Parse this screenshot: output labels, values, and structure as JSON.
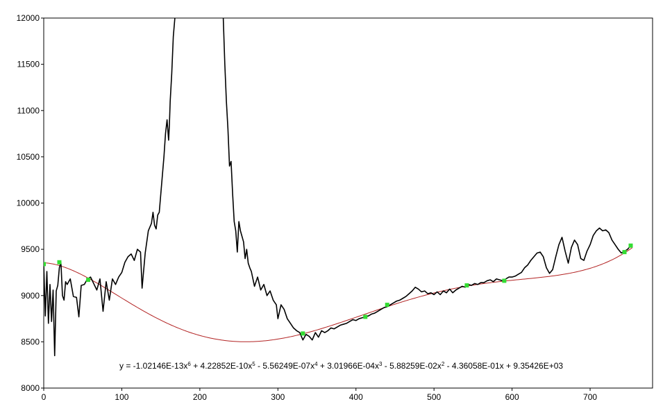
{
  "chart_data": {
    "type": "line",
    "title": "",
    "xlabel": "",
    "ylabel": "",
    "xlim": [
      0,
      780
    ],
    "ylim": [
      8000,
      12000
    ],
    "grid": false,
    "legend": "none",
    "x_ticks": [
      0,
      100,
      200,
      300,
      400,
      500,
      600,
      700
    ],
    "y_ticks": [
      8000,
      8500,
      9000,
      9500,
      10000,
      10500,
      11000,
      11500,
      12000
    ],
    "equation": {
      "y": "y = -1.02146E-13x",
      "p6": "6",
      "t5": " + 4.22852E-10x",
      "p5": "5",
      "t4": " - 5.56249E-07x",
      "p4": "4",
      "t3": " + 3.01966E-04x",
      "p3": "3",
      "t2": " - 5.88259E-02x",
      "p2": "2",
      "t1": " - 4.36058E-01x + 9.35426E+03"
    },
    "series": [
      {
        "kind": "signal",
        "color": "#000000",
        "points": [
          [
            0,
            9340
          ],
          [
            2,
            8780
          ],
          [
            4,
            9260
          ],
          [
            6,
            8700
          ],
          [
            8,
            9120
          ],
          [
            10,
            8720
          ],
          [
            12,
            9060
          ],
          [
            14,
            8350
          ],
          [
            16,
            9050
          ],
          [
            18,
            9110
          ],
          [
            20,
            9300
          ],
          [
            22,
            9360
          ],
          [
            24,
            9000
          ],
          [
            26,
            8950
          ],
          [
            28,
            9150
          ],
          [
            30,
            9120
          ],
          [
            34,
            9180
          ],
          [
            38,
            8990
          ],
          [
            42,
            8980
          ],
          [
            45,
            8770
          ],
          [
            48,
            9110
          ],
          [
            52,
            9120
          ],
          [
            56,
            9180
          ],
          [
            60,
            9200
          ],
          [
            64,
            9130
          ],
          [
            68,
            9060
          ],
          [
            72,
            9180
          ],
          [
            76,
            8830
          ],
          [
            80,
            9150
          ],
          [
            84,
            8950
          ],
          [
            88,
            9180
          ],
          [
            92,
            9120
          ],
          [
            96,
            9200
          ],
          [
            100,
            9250
          ],
          [
            104,
            9360
          ],
          [
            108,
            9420
          ],
          [
            112,
            9450
          ],
          [
            116,
            9380
          ],
          [
            120,
            9500
          ],
          [
            124,
            9470
          ],
          [
            126,
            9080
          ],
          [
            130,
            9460
          ],
          [
            134,
            9700
          ],
          [
            138,
            9780
          ],
          [
            140,
            9900
          ],
          [
            142,
            9760
          ],
          [
            144,
            9720
          ],
          [
            146,
            9870
          ],
          [
            148,
            9900
          ],
          [
            150,
            10100
          ],
          [
            152,
            10300
          ],
          [
            154,
            10500
          ],
          [
            156,
            10750
          ],
          [
            158,
            10900
          ],
          [
            160,
            10680
          ],
          [
            161,
            10850
          ],
          [
            162,
            11100
          ],
          [
            164,
            11400
          ],
          [
            166,
            11800
          ],
          [
            168,
            12000
          ],
          [
            168,
            12100
          ],
          [
            230,
            12100
          ],
          [
            230,
            12000
          ],
          [
            232,
            11500
          ],
          [
            234,
            11100
          ],
          [
            236,
            10800
          ],
          [
            238,
            10400
          ],
          [
            240,
            10450
          ],
          [
            242,
            10100
          ],
          [
            244,
            9800
          ],
          [
            246,
            9700
          ],
          [
            248,
            9470
          ],
          [
            250,
            9800
          ],
          [
            252,
            9700
          ],
          [
            256,
            9580
          ],
          [
            258,
            9400
          ],
          [
            260,
            9500
          ],
          [
            262,
            9350
          ],
          [
            264,
            9300
          ],
          [
            266,
            9260
          ],
          [
            270,
            9100
          ],
          [
            274,
            9200
          ],
          [
            278,
            9060
          ],
          [
            282,
            9120
          ],
          [
            286,
            9000
          ],
          [
            290,
            9050
          ],
          [
            294,
            8950
          ],
          [
            298,
            8900
          ],
          [
            300,
            8750
          ],
          [
            304,
            8900
          ],
          [
            308,
            8850
          ],
          [
            312,
            8750
          ],
          [
            316,
            8700
          ],
          [
            320,
            8650
          ],
          [
            324,
            8620
          ],
          [
            328,
            8600
          ],
          [
            332,
            8520
          ],
          [
            336,
            8580
          ],
          [
            340,
            8560
          ],
          [
            344,
            8520
          ],
          [
            348,
            8600
          ],
          [
            352,
            8550
          ],
          [
            356,
            8620
          ],
          [
            360,
            8600
          ],
          [
            364,
            8620
          ],
          [
            368,
            8650
          ],
          [
            372,
            8640
          ],
          [
            376,
            8660
          ],
          [
            380,
            8680
          ],
          [
            384,
            8690
          ],
          [
            388,
            8700
          ],
          [
            392,
            8720
          ],
          [
            396,
            8740
          ],
          [
            400,
            8730
          ],
          [
            404,
            8750
          ],
          [
            408,
            8760
          ],
          [
            412,
            8770
          ],
          [
            416,
            8780
          ],
          [
            420,
            8800
          ],
          [
            424,
            8810
          ],
          [
            428,
            8830
          ],
          [
            432,
            8850
          ],
          [
            436,
            8870
          ],
          [
            440,
            8880
          ],
          [
            444,
            8900
          ],
          [
            448,
            8920
          ],
          [
            452,
            8940
          ],
          [
            456,
            8950
          ],
          [
            460,
            8970
          ],
          [
            464,
            8990
          ],
          [
            468,
            9020
          ],
          [
            472,
            9050
          ],
          [
            476,
            9090
          ],
          [
            480,
            9070
          ],
          [
            484,
            9040
          ],
          [
            488,
            9050
          ],
          [
            492,
            9020
          ],
          [
            496,
            9030
          ],
          [
            500,
            9010
          ],
          [
            504,
            9040
          ],
          [
            508,
            9010
          ],
          [
            512,
            9050
          ],
          [
            516,
            9030
          ],
          [
            520,
            9070
          ],
          [
            524,
            9030
          ],
          [
            528,
            9060
          ],
          [
            532,
            9080
          ],
          [
            536,
            9100
          ],
          [
            540,
            9090
          ],
          [
            544,
            9120
          ],
          [
            548,
            9110
          ],
          [
            552,
            9130
          ],
          [
            556,
            9120
          ],
          [
            560,
            9140
          ],
          [
            564,
            9140
          ],
          [
            568,
            9160
          ],
          [
            572,
            9170
          ],
          [
            576,
            9150
          ],
          [
            580,
            9180
          ],
          [
            584,
            9170
          ],
          [
            588,
            9160
          ],
          [
            592,
            9180
          ],
          [
            596,
            9200
          ],
          [
            600,
            9200
          ],
          [
            604,
            9210
          ],
          [
            608,
            9230
          ],
          [
            612,
            9250
          ],
          [
            616,
            9300
          ],
          [
            620,
            9330
          ],
          [
            624,
            9380
          ],
          [
            628,
            9420
          ],
          [
            632,
            9460
          ],
          [
            636,
            9470
          ],
          [
            640,
            9420
          ],
          [
            644,
            9300
          ],
          [
            648,
            9240
          ],
          [
            652,
            9280
          ],
          [
            656,
            9420
          ],
          [
            660,
            9550
          ],
          [
            664,
            9630
          ],
          [
            668,
            9480
          ],
          [
            672,
            9350
          ],
          [
            676,
            9520
          ],
          [
            680,
            9600
          ],
          [
            684,
            9550
          ],
          [
            688,
            9400
          ],
          [
            692,
            9380
          ],
          [
            696,
            9480
          ],
          [
            700,
            9550
          ],
          [
            704,
            9650
          ],
          [
            708,
            9700
          ],
          [
            712,
            9730
          ],
          [
            716,
            9700
          ],
          [
            720,
            9710
          ],
          [
            724,
            9680
          ],
          [
            728,
            9600
          ],
          [
            732,
            9550
          ],
          [
            736,
            9500
          ],
          [
            740,
            9460
          ],
          [
            744,
            9480
          ],
          [
            748,
            9500
          ],
          [
            752,
            9540
          ],
          [
            754,
            9550
          ]
        ]
      },
      {
        "kind": "fit",
        "color": "#b22222",
        "x_start": 0,
        "x_end": 754
      },
      {
        "kind": "anchors",
        "color": "#33dd33",
        "points": [
          [
            0,
            9340
          ],
          [
            20,
            9360
          ],
          [
            57,
            9170
          ],
          [
            332,
            8590
          ],
          [
            412,
            8770
          ],
          [
            440,
            8900
          ],
          [
            542,
            9110
          ],
          [
            590,
            9160
          ],
          [
            744,
            9470
          ],
          [
            752,
            9540
          ]
        ]
      }
    ]
  }
}
